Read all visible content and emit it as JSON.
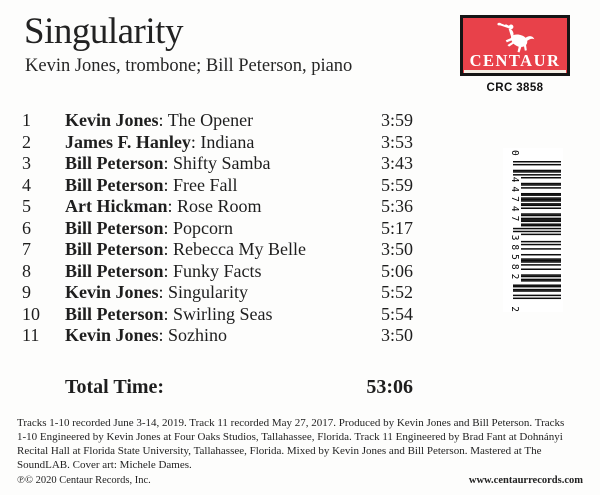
{
  "header": {
    "title": "Singularity",
    "artists": "Kevin Jones, trombone; Bill Peterson, piano",
    "logo_text": "CENTAUR",
    "catalog_number": "CRC 3858"
  },
  "tracks": [
    {
      "num": "1",
      "composer": "Kevin Jones",
      "title": "The Opener",
      "time": "3:59"
    },
    {
      "num": "2",
      "composer": "James F. Hanley",
      "title": "Indiana",
      "time": "3:53"
    },
    {
      "num": "3",
      "composer": "Bill Peterson",
      "title": "Shifty Samba",
      "time": "3:43"
    },
    {
      "num": "4",
      "composer": "Bill Peterson",
      "title": "Free Fall",
      "time": "5:59"
    },
    {
      "num": "5",
      "composer": "Art Hickman",
      "title": "Rose Room",
      "time": "5:36"
    },
    {
      "num": "6",
      "composer": "Bill Peterson",
      "title": "Popcorn",
      "time": "5:17"
    },
    {
      "num": "7",
      "composer": "Bill Peterson",
      "title": "Rebecca My Belle",
      "time": "3:50"
    },
    {
      "num": "8",
      "composer": "Bill Peterson",
      "title": "Funky Facts",
      "time": "5:06"
    },
    {
      "num": "9",
      "composer": "Kevin Jones",
      "title": "Singularity",
      "time": "5:52"
    },
    {
      "num": "10",
      "composer": "Bill Peterson",
      "title": "Swirling Seas",
      "time": "5:54"
    },
    {
      "num": "11",
      "composer": "Kevin Jones",
      "title": "Sozhino",
      "time": "3:50"
    }
  ],
  "total": {
    "label": "Total Time:",
    "time": "53:06"
  },
  "notes_lines": [
    "Tracks 1-10 recorded June 3-14, 2019. Track 11 recorded May 27, 2017. Produced by Kevin Jones and Bill Peterson. Tracks",
    "1-10 Engineered by Kevin Jones at Four Oaks Studios, Tallahassee, Florida. Track 11 Engineered by Brad Fant at Dohnányi",
    "Recital Hall at Florida State University, Tallahassee, Florida. Mixed by Kevin Jones and Bill Peterson. Mastered at The",
    "SoundLAB. Cover art: Michele Dames."
  ],
  "footer": {
    "copyright": "℗© 2020 Centaur Records, Inc.",
    "website": "www.centaurrecords.com"
  },
  "barcode": {
    "upc": "044747385822",
    "display": {
      "lead": "0",
      "group1": "44747",
      "group2": "38582",
      "check": "2"
    }
  },
  "colors": {
    "logo_red": "#e8414a",
    "text": "#1e1e1e",
    "bar_black": "#0d0d0d"
  }
}
